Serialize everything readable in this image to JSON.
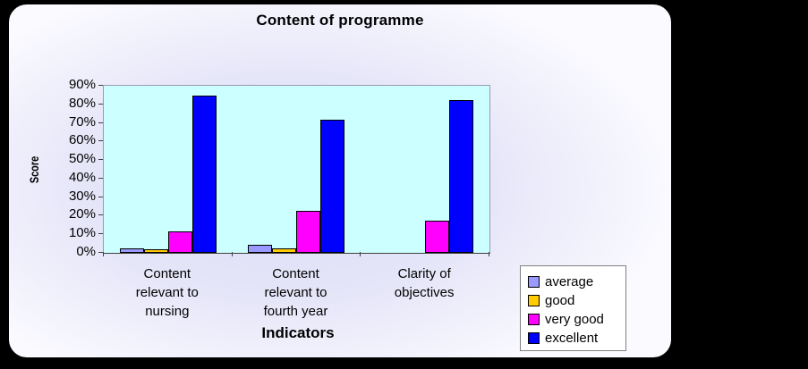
{
  "frame": {
    "background_tint": "#DCDCF6",
    "border_color": "#000000",
    "outer_background": "#000000"
  },
  "chart_data": {
    "type": "bar",
    "title": "Content of programme",
    "xlabel": "Indicators",
    "ylabel": "Score",
    "categories": [
      "Content relevant to nursing",
      "Content relevant to fourth year",
      "Clarity of objectives"
    ],
    "series": [
      {
        "name": "average",
        "color": "#9999FF",
        "values": [
          2,
          4,
          0
        ]
      },
      {
        "name": "good",
        "color": "#FFCC00",
        "values": [
          1.5,
          2,
          0
        ]
      },
      {
        "name": "very good",
        "color": "#FF00FF",
        "values": [
          11,
          22,
          17
        ]
      },
      {
        "name": "excellent",
        "color": "#0000FF",
        "values": [
          84,
          71,
          82
        ]
      }
    ],
    "ylim": [
      0,
      90
    ],
    "ytick_step": 10,
    "ytick_suffix": "%",
    "ytick_labels": [
      "0%",
      "10%",
      "20%",
      "30%",
      "40%",
      "50%",
      "60%",
      "70%",
      "80%",
      "90%"
    ],
    "plot_bg": "#CCFFFF",
    "bar_border": "#000000",
    "grid": false,
    "legend_position": "bottom-right"
  }
}
